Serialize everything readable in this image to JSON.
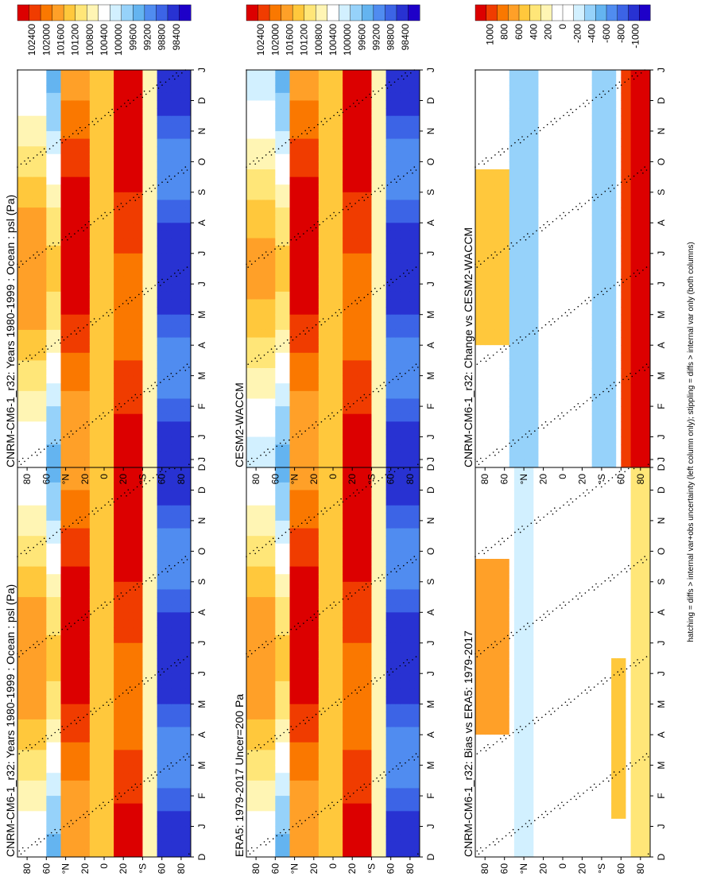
{
  "note": "hatching = diffs > internal var+obs uncertainty (left column only); stippling = diffs > internal var only (both columns)",
  "chart_data": [
    {
      "type": "heatmap",
      "title": "CNRM-CM6-1_r32: Years 1980-1999 : Ocean : psl (Pa)",
      "months": [
        "D",
        "J",
        "F",
        "M",
        "A",
        "M",
        "J",
        "J",
        "A",
        "S",
        "O",
        "N",
        "D",
        "J"
      ],
      "lat_ticks": [
        "80",
        "60",
        "°N",
        "20",
        "0",
        "20",
        "°S",
        "60",
        "80"
      ],
      "colorbar": [
        "102400",
        "102000",
        "101600",
        "101200",
        "100800",
        "100400",
        "100000",
        "99600",
        "99200",
        "98800",
        "98400"
      ],
      "kind": "abs"
    },
    {
      "type": "heatmap",
      "title": "ERA5: 1979-2017 Uncer=200 Pa",
      "months": [
        "D",
        "J",
        "F",
        "M",
        "A",
        "M",
        "J",
        "J",
        "A",
        "S",
        "O",
        "N",
        "D",
        "J"
      ],
      "lat_ticks": [
        "80",
        "60",
        "°N",
        "20",
        "0",
        "20",
        "°S",
        "60",
        "80"
      ],
      "colorbar": [
        "102400",
        "102000",
        "101600",
        "101200",
        "100800",
        "100400",
        "100000",
        "99600",
        "99200",
        "98800",
        "98400"
      ],
      "kind": "abs"
    },
    {
      "type": "heatmap",
      "title": "CNRM-CM6-1_r32: Bias vs ERA5: 1979-2017",
      "months": [
        "D",
        "J",
        "F",
        "M",
        "A",
        "M",
        "J",
        "J",
        "A",
        "S",
        "O",
        "N",
        "D",
        "J"
      ],
      "lat_ticks": [
        "80",
        "60",
        "°N",
        "20",
        "0",
        "20",
        "°S",
        "60",
        "80"
      ],
      "colorbar": [
        "1000",
        "800",
        "600",
        "400",
        "200",
        "0",
        "-200",
        "-400",
        "-600",
        "-800",
        "-1000"
      ],
      "kind": "diff"
    },
    {
      "type": "heatmap",
      "title": "CNRM-CM6-1_r32: Years 1980-1999 : Ocean : psl (Pa)",
      "months": [
        "D",
        "J",
        "F",
        "M",
        "A",
        "M",
        "J",
        "J",
        "A",
        "S",
        "O",
        "N",
        "D",
        "J"
      ],
      "lat_ticks": [
        "80",
        "60",
        "°N",
        "20",
        "0",
        "20",
        "°S",
        "60",
        "80"
      ],
      "colorbar": [
        "102400",
        "102000",
        "101600",
        "101200",
        "100800",
        "100400",
        "100000",
        "99600",
        "99200",
        "98800",
        "98400"
      ],
      "kind": "abs"
    },
    {
      "type": "heatmap",
      "title": "CESM2-WACCM",
      "months": [
        "D",
        "J",
        "F",
        "M",
        "A",
        "M",
        "J",
        "J",
        "A",
        "S",
        "O",
        "N",
        "D",
        "J"
      ],
      "lat_ticks": [
        "80",
        "60",
        "°N",
        "20",
        "0",
        "20",
        "°S",
        "60",
        "80"
      ],
      "colorbar": [
        "102400",
        "102000",
        "101600",
        "101200",
        "100800",
        "100400",
        "100000",
        "99600",
        "99200",
        "98800",
        "98400"
      ],
      "kind": "abs"
    },
    {
      "type": "heatmap",
      "title": "CNRM-CM6-1_r32: Change vs CESM2-WACCM",
      "months": [
        "D",
        "J",
        "F",
        "M",
        "A",
        "M",
        "J",
        "J",
        "A",
        "S",
        "O",
        "N",
        "D",
        "J"
      ],
      "lat_ticks": [
        "80",
        "60",
        "°N",
        "20",
        "0",
        "20",
        "°S",
        "60",
        "80"
      ],
      "colorbar": [
        "1000",
        "800",
        "600",
        "400",
        "200",
        "0",
        "-200",
        "-400",
        "-600",
        "-800",
        "-1000"
      ],
      "kind": "diff"
    }
  ],
  "colors": {
    "abs_scale": [
      "#dc0000",
      "#f03c00",
      "#fa7800",
      "#ffa028",
      "#ffc83c",
      "#ffe678",
      "#fff5b4",
      "#ffffff",
      "#d2f0ff",
      "#96d2fa",
      "#64b4f0",
      "#508cf0",
      "#3c64e6",
      "#2832d2",
      "#1e00c8"
    ],
    "diff_scale": [
      "#dc0000",
      "#f03c00",
      "#fa7800",
      "#ffa028",
      "#ffc83c",
      "#ffe678",
      "#fff5b4",
      "#ffffff",
      "#ffffff",
      "#d2f0ff",
      "#96d2fa",
      "#64b4f0",
      "#508cf0",
      "#3c64e6",
      "#2832d2",
      "#1e00c8"
    ]
  }
}
